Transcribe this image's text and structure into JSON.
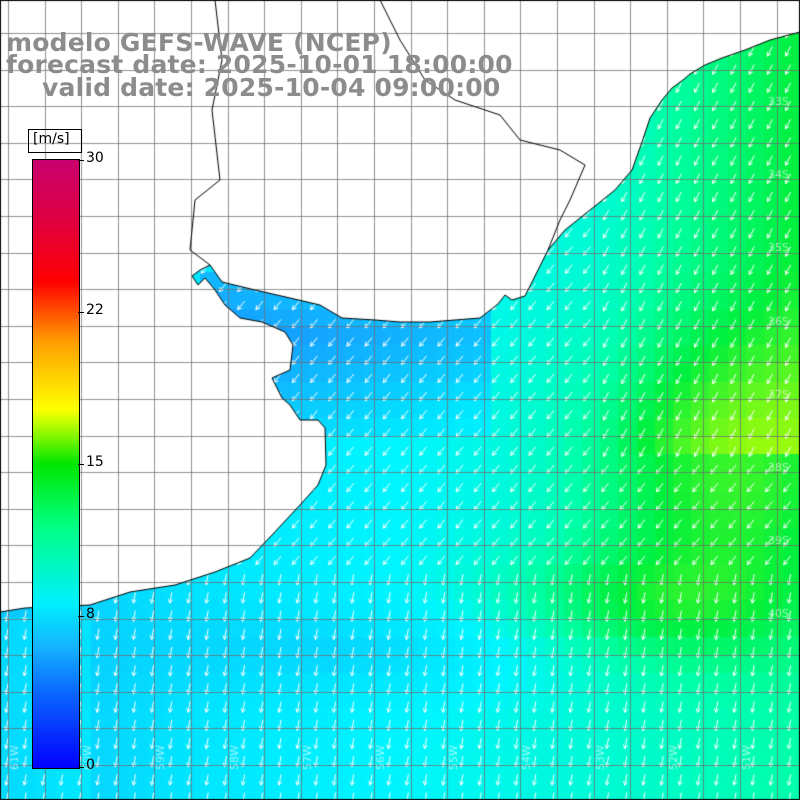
{
  "title": {
    "model": "modelo GEFS-WAVE (NCEP)",
    "forecast": "forecast date: 2025-10-01 18:00:00",
    "valid": "valid date: 2025-10-04 09:00:00"
  },
  "colorbar": {
    "unit": "[m/s]",
    "ticks": [
      {
        "label": "30",
        "value": 30
      },
      {
        "label": "22",
        "value": 22
      },
      {
        "label": "15",
        "value": 15
      },
      {
        "label": "8",
        "value": 8
      },
      {
        "label": "0",
        "value": 0
      }
    ],
    "range": [
      0,
      30
    ]
  },
  "map": {
    "field": "wind speed",
    "arrow_direction": "north-easterly flow towards south-west / south",
    "land_color": "#ffffff",
    "coastline_color": "#000000",
    "grid_color": "#888888",
    "lon_labels": [
      "61W",
      "60W",
      "59W",
      "58W",
      "57W",
      "56W",
      "55W",
      "54W",
      "53W",
      "52W",
      "51W"
    ],
    "lat_labels": [
      "33S",
      "34S",
      "35S",
      "36S",
      "37S",
      "38S",
      "39S",
      "40S"
    ]
  }
}
